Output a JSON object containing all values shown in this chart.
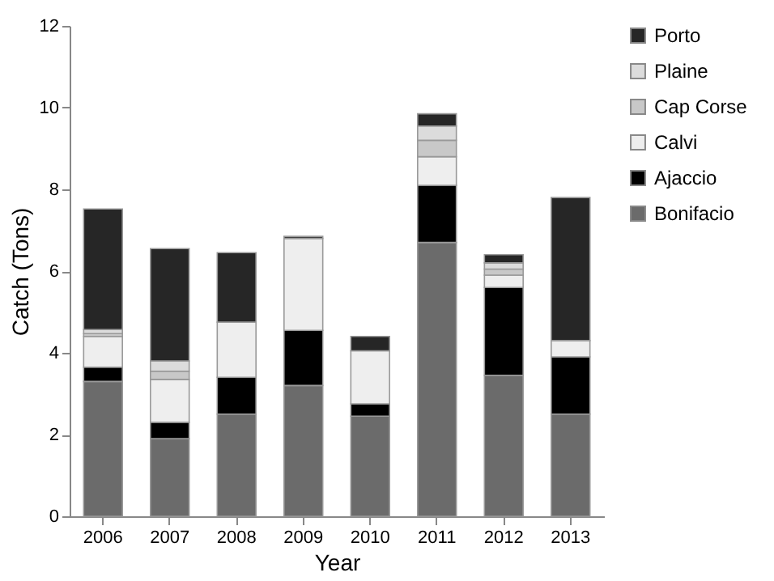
{
  "chart_data": {
    "type": "bar",
    "stacked": true,
    "xlabel": "Year",
    "ylabel": "Catch (Tons)",
    "categories": [
      "2006",
      "2007",
      "2008",
      "2009",
      "2010",
      "2011",
      "2012",
      "2013"
    ],
    "series": [
      {
        "name": "Bonifacio",
        "color": "#6b6b6b",
        "values": [
          3.3,
          1.9,
          2.5,
          3.2,
          2.45,
          6.7,
          3.45,
          2.5
        ]
      },
      {
        "name": "Ajaccio",
        "color": "#000000",
        "values": [
          0.35,
          0.4,
          0.9,
          1.35,
          0.3,
          1.4,
          2.15,
          1.4
        ]
      },
      {
        "name": "Calvi",
        "color": "#eeeeee",
        "values": [
          0.75,
          1.05,
          1.35,
          2.25,
          1.3,
          0.7,
          0.3,
          0.4
        ]
      },
      {
        "name": "Cap Corse",
        "color": "#c8c8c8",
        "values": [
          0.07,
          0.2,
          null,
          null,
          null,
          0.4,
          0.15,
          null
        ]
      },
      {
        "name": "Plaine",
        "color": "#dcdcdc",
        "values": [
          0.1,
          0.25,
          null,
          null,
          null,
          0.35,
          0.15,
          null
        ]
      },
      {
        "name": "Porto",
        "color": "#262626",
        "values": [
          2.95,
          2.75,
          1.7,
          0.05,
          0.35,
          0.3,
          0.2,
          3.5
        ]
      }
    ],
    "ylim": [
      0,
      12
    ],
    "yticks": [
      0,
      2,
      4,
      6,
      8,
      10,
      12
    ],
    "grid": false,
    "legend": "top right"
  }
}
